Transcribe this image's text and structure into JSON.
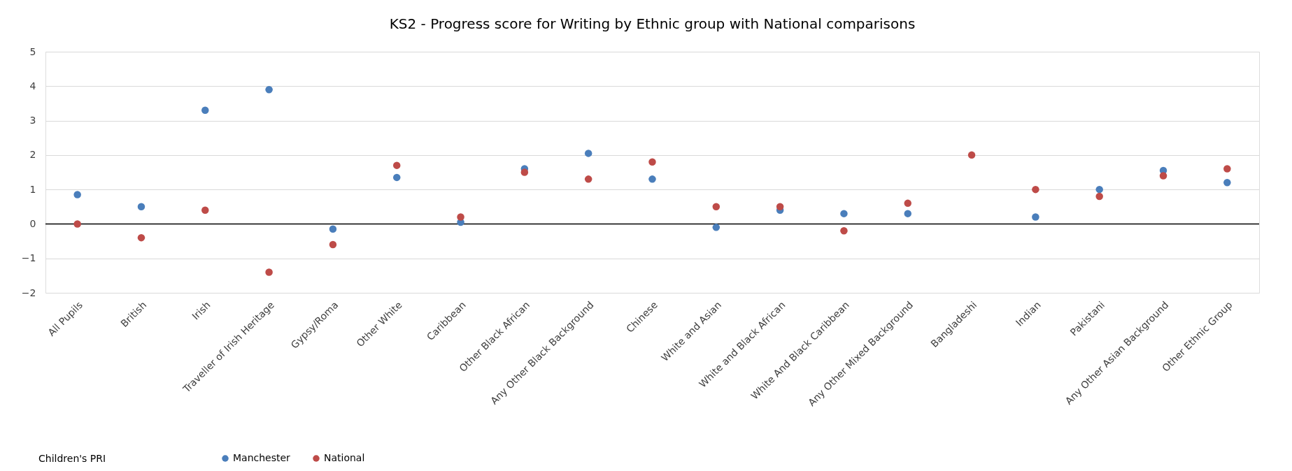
{
  "chart_data": {
    "type": "scatter",
    "title": "KS2 - Progress score for Writing  by Ethnic group with National comparisons",
    "categories": [
      "All Pupils",
      "British",
      "Irish",
      "Traveller of Irish Heritage",
      "Gypsy/Roma",
      "Other White",
      "Caribbean",
      "Other Black African",
      "Any Other Black Background",
      "Chinese",
      "White and Asian",
      "White and Black African",
      "White And Black Caribbean",
      "Any Other Mixed Background",
      "Bangladeshi",
      "Indian",
      "Pakistani",
      "Any Other Asian Background",
      "Other Ethnic Group"
    ],
    "series": [
      {
        "name": "Manchester",
        "color": "#4a7ebb",
        "values": [
          0.85,
          0.5,
          3.3,
          3.9,
          -0.15,
          1.35,
          0.05,
          1.6,
          2.05,
          1.3,
          -0.1,
          0.4,
          0.3,
          0.3,
          null,
          0.2,
          1.0,
          1.55,
          1.2
        ]
      },
      {
        "name": "National",
        "color": "#be4b48",
        "values": [
          0.0,
          -0.4,
          0.4,
          -1.4,
          -0.6,
          1.7,
          0.2,
          1.5,
          1.3,
          1.8,
          0.5,
          0.5,
          -0.2,
          0.6,
          2.0,
          1.0,
          0.8,
          1.4,
          1.6
        ]
      }
    ],
    "ylim": [
      -2,
      5
    ],
    "yticks": [
      -2,
      -1,
      0,
      1,
      2,
      3,
      4,
      5
    ],
    "grid": "y",
    "legend": "bottom",
    "marker": "circle",
    "ref_lines": [
      {
        "axis": "y",
        "value": 0,
        "color": "#000000"
      }
    ],
    "annotations": [
      "Children's PRI"
    ]
  }
}
